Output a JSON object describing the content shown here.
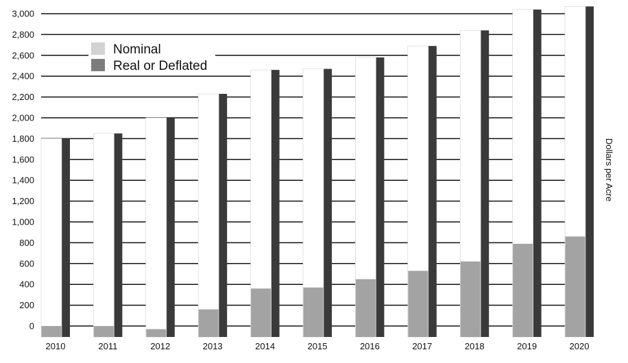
{
  "chart_data": {
    "type": "bar",
    "title": "",
    "xlabel": "",
    "ylabel": "Dollars per Acre",
    "ylim": [
      0,
      3000
    ],
    "yticks": [
      0,
      200,
      400,
      600,
      800,
      1000,
      1200,
      1400,
      1600,
      1800,
      2000,
      2200,
      2400,
      2600,
      2800,
      3000
    ],
    "ytick_labels": [
      "0",
      "200",
      "400",
      "600",
      "800",
      "1,000",
      "1,200",
      "1,400",
      "1,600",
      "1,800",
      "2,000",
      "2,200",
      "2,400",
      "2,600",
      "2,800",
      "3,000"
    ],
    "categories": [
      "2010",
      "2011",
      "2012",
      "2013",
      "2014",
      "2015",
      "2016",
      "2017",
      "2018",
      "2019",
      "2020"
    ],
    "series": [
      {
        "name": "Nominal",
        "values": [
          1800,
          1850,
          2000,
          2230,
          2460,
          2470,
          2580,
          2690,
          2840,
          3040,
          3070
        ]
      },
      {
        "name": "Real or Deflated",
        "values": [
          0,
          0,
          -30,
          160,
          360,
          370,
          450,
          530,
          620,
          790,
          860
        ]
      }
    ],
    "legend": {
      "position": "top-left",
      "entries": [
        "Nominal",
        "Real or Deflated"
      ]
    },
    "grid": true,
    "colors": {
      "nominal_face": "#ffffff",
      "nominal_side": "#3a3a3a",
      "real_face": "#a3a3a3",
      "legend_nominal": "#d2d2d2",
      "legend_real": "#7d7d7d",
      "gridline": "#111111"
    }
  }
}
